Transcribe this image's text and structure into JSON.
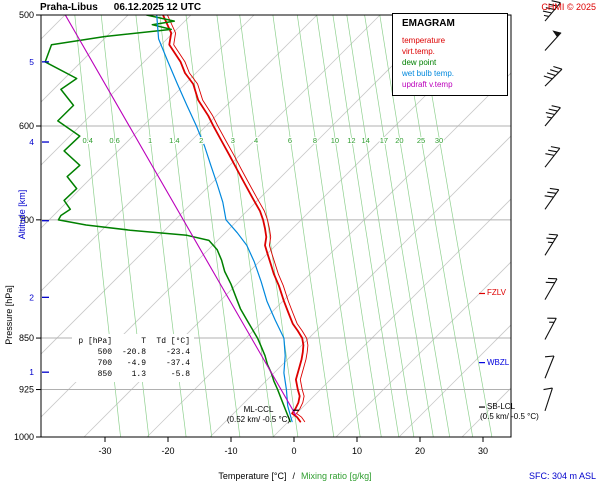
{
  "header": {
    "station": "Praha-Libus",
    "datetime": "06.12.2025 12 UTC",
    "copyright": "CHMI © 2025"
  },
  "footer": {
    "x_label_temp": "Temperature [°C]",
    "x_label_sep": "/",
    "x_label_mixing": "Mixing ratio [g/kg]",
    "surface": "SFC: 304 m ASL"
  },
  "axes": {
    "pressure_label": "Pressure [hPa]",
    "altitude_label": "Altitude [km]",
    "pressure_ticks": [
      500,
      600,
      700,
      850,
      925,
      1000
    ],
    "altitude_ticks": [
      {
        "km": "1",
        "p": 899
      },
      {
        "km": "2",
        "p": 795
      },
      {
        "km": "3",
        "p": 701
      },
      {
        "km": "4",
        "p": 616
      },
      {
        "km": "5",
        "p": 540
      }
    ],
    "temp_ticks": [
      -30,
      -20,
      -10,
      0,
      10,
      20,
      30
    ]
  },
  "legend": {
    "title": "EMAGRAM",
    "items": [
      {
        "label": "temperature",
        "color": "#dd0000"
      },
      {
        "label": "virt.temp.",
        "color": "#dd0000"
      },
      {
        "label": "dew point",
        "color": "#008000"
      },
      {
        "label": "wet bulb temp.",
        "color": "#0088dd"
      },
      {
        "label": "updraft v.temp",
        "color": "#bb00bb"
      }
    ]
  },
  "table": {
    "header": [
      "p [hPa]",
      "T",
      "Td [°C]"
    ],
    "rows": [
      [
        "500",
        "-20.8",
        "-23.4"
      ],
      [
        "700",
        "-4.9",
        "-37.4"
      ],
      [
        "850",
        "1.3",
        "-5.8"
      ]
    ]
  },
  "annotations": {
    "fzlv": {
      "label": "FZLV",
      "p": 790,
      "color": "#dd0000"
    },
    "wbzl": {
      "label": "WBZL",
      "p": 885,
      "color": "#0000dd"
    },
    "sb_lcl": {
      "label": "SB-LCL",
      "detail": "(0.5 km/ -0.5 °C)",
      "p": 952,
      "color": "#000000"
    },
    "ml_ccl": {
      "label": "ML-CCL",
      "detail": "(0.52 km/ -0.5 °C)",
      "p": 957,
      "color": "#000000"
    }
  },
  "chart_data": {
    "type": "line",
    "title": "Praha-Libus 06.12.2025 12 UTC sounding (emagram)",
    "x_axis": "Temperature [°C]",
    "x_range": [
      -40,
      35
    ],
    "y_axis": "Pressure [hPa], log scale",
    "y_range": [
      1000,
      500
    ],
    "grid": "diagonal adiabat lines every 10 °C, green mixing-ratio lines",
    "legend_position": "top-right",
    "mixing_ratio_lines": [
      0.4,
      0.6,
      1,
      1.4,
      2,
      3,
      4,
      6,
      8,
      10,
      12,
      14,
      17,
      20,
      25,
      30
    ],
    "series": [
      {
        "name": "temperature",
        "color": "#dd0000",
        "width": 1.8,
        "points": [
          [
            975,
            1.0
          ],
          [
            968,
            0.5
          ],
          [
            962,
            -0.3
          ],
          [
            955,
            0.2
          ],
          [
            945,
            0.7
          ],
          [
            935,
            0.9
          ],
          [
            925,
            0.6
          ],
          [
            910,
            0.3
          ],
          [
            900,
            0.6
          ],
          [
            890,
            0.9
          ],
          [
            880,
            1.2
          ],
          [
            870,
            1.4
          ],
          [
            860,
            1.5
          ],
          [
            850,
            1.3
          ],
          [
            840,
            0.6
          ],
          [
            830,
            -0.2
          ],
          [
            815,
            -0.9
          ],
          [
            800,
            -1.6
          ],
          [
            780,
            -2.4
          ],
          [
            765,
            -3.2
          ],
          [
            750,
            -3.8
          ],
          [
            740,
            -4.2
          ],
          [
            730,
            -4.6
          ],
          [
            720,
            -4.4
          ],
          [
            710,
            -4.6
          ],
          [
            700,
            -4.9
          ],
          [
            690,
            -5.4
          ],
          [
            675,
            -6.6
          ],
          [
            660,
            -7.8
          ],
          [
            645,
            -9.0
          ],
          [
            630,
            -10.2
          ],
          [
            615,
            -11.5
          ],
          [
            600,
            -12.8
          ],
          [
            590,
            -13.6
          ],
          [
            575,
            -15.2
          ],
          [
            560,
            -16.0
          ],
          [
            550,
            -17.3
          ],
          [
            540,
            -18.0
          ],
          [
            525,
            -19.8
          ],
          [
            515,
            -19.5
          ],
          [
            500,
            -20.8
          ]
        ]
      },
      {
        "name": "virt.temp.",
        "color": "#dd0000",
        "width": 0.9,
        "offset": 0.7
      },
      {
        "name": "dew point",
        "color": "#008000",
        "width": 1.5,
        "points": [
          [
            975,
            -0.6
          ],
          [
            965,
            -1.0
          ],
          [
            955,
            -1.4
          ],
          [
            940,
            -2.0
          ],
          [
            925,
            -2.6
          ],
          [
            912,
            -3.2
          ],
          [
            900,
            -3.6
          ],
          [
            888,
            -4.2
          ],
          [
            875,
            -4.6
          ],
          [
            862,
            -5.2
          ],
          [
            850,
            -5.8
          ],
          [
            838,
            -6.6
          ],
          [
            825,
            -7.5
          ],
          [
            810,
            -8.5
          ],
          [
            795,
            -9.2
          ],
          [
            778,
            -10.0
          ],
          [
            762,
            -11.0
          ],
          [
            748,
            -11.5
          ],
          [
            735,
            -12.2
          ],
          [
            724,
            -13.5
          ],
          [
            718,
            -17.0
          ],
          [
            712,
            -26.0
          ],
          [
            706,
            -33.0
          ],
          [
            700,
            -37.4
          ],
          [
            695,
            -37.0
          ],
          [
            688,
            -35.5
          ],
          [
            678,
            -36.5
          ],
          [
            665,
            -34.5
          ],
          [
            652,
            -36.0
          ],
          [
            640,
            -34.0
          ],
          [
            625,
            -36.5
          ],
          [
            610,
            -34.0
          ],
          [
            595,
            -37.5
          ],
          [
            580,
            -35.0
          ],
          [
            565,
            -37.0
          ],
          [
            555,
            -34.5
          ],
          [
            540,
            -39.5
          ],
          [
            525,
            -38.5
          ],
          [
            518,
            -30.0
          ],
          [
            512,
            -19.5
          ],
          [
            508,
            -22.5
          ],
          [
            505,
            -19.0
          ],
          [
            500,
            -23.4
          ]
        ]
      },
      {
        "name": "wet bulb temp.",
        "color": "#0088dd",
        "width": 1.2,
        "points": [
          [
            975,
            -0.3
          ],
          [
            950,
            -1.0
          ],
          [
            925,
            -1.2
          ],
          [
            900,
            -1.6
          ],
          [
            875,
            -1.4
          ],
          [
            850,
            -1.6
          ],
          [
            825,
            -3.0
          ],
          [
            800,
            -4.3
          ],
          [
            775,
            -5.2
          ],
          [
            750,
            -6.3
          ],
          [
            730,
            -7.5
          ],
          [
            715,
            -9.0
          ],
          [
            700,
            -10.8
          ],
          [
            680,
            -11.3
          ],
          [
            660,
            -12.2
          ],
          [
            640,
            -13.2
          ],
          [
            620,
            -14.2
          ],
          [
            600,
            -15.5
          ],
          [
            580,
            -17.0
          ],
          [
            560,
            -18.5
          ],
          [
            540,
            -20.0
          ],
          [
            520,
            -21.5
          ],
          [
            500,
            -21.8
          ]
        ]
      },
      {
        "name": "updraft v.temp",
        "color": "#bb00bb",
        "width": 1.1,
        "points": [
          [
            965,
            0.3
          ],
          [
            500,
            -36.3
          ]
        ]
      }
    ],
    "wind_barbs": {
      "x": 545,
      "color": "#111111",
      "items": [
        {
          "p": 505,
          "speed": 45,
          "angle": 40
        },
        {
          "p": 530,
          "speed": 50,
          "angle": 42
        },
        {
          "p": 562,
          "speed": 40,
          "angle": 45
        },
        {
          "p": 600,
          "speed": 35,
          "angle": 40
        },
        {
          "p": 642,
          "speed": 30,
          "angle": 38
        },
        {
          "p": 688,
          "speed": 30,
          "angle": 35
        },
        {
          "p": 742,
          "speed": 25,
          "angle": 32
        },
        {
          "p": 798,
          "speed": 20,
          "angle": 30
        },
        {
          "p": 852,
          "speed": 15,
          "angle": 28
        },
        {
          "p": 908,
          "speed": 10,
          "angle": 22
        },
        {
          "p": 958,
          "speed": 10,
          "angle": 18
        }
      ]
    }
  }
}
